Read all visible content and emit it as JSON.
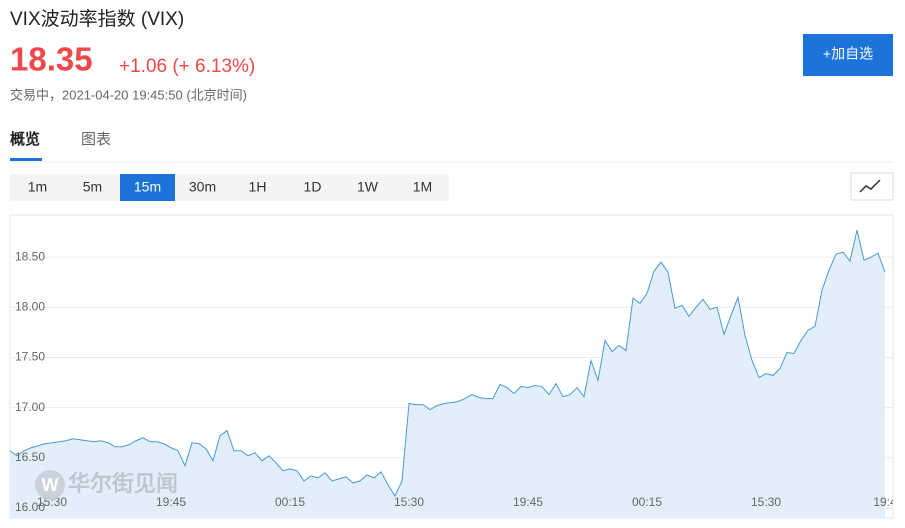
{
  "header": {
    "title": "VIX波动率指数 (VIX)",
    "price": "18.35",
    "change": "+1.06 (+ 6.13%)",
    "status": "交易中，2021-04-20 19:45:50 (北京时间)",
    "button": "+加自选"
  },
  "tabs": [
    "概览",
    "图表"
  ],
  "active_tab": "概览",
  "intervals": [
    "1m",
    "5m",
    "15m",
    "30m",
    "1H",
    "1D",
    "1W",
    "1M"
  ],
  "active_interval": "15m",
  "watermark": "华尔街见闻",
  "chart_data": {
    "type": "area",
    "color": "#4a9ad8",
    "fill": "#e2effb",
    "grid": true,
    "ylim": [
      15.9,
      18.92
    ],
    "yticks": [
      {
        "value": 16,
        "label": "16.00"
      },
      {
        "value": 16.5,
        "label": "16.50"
      },
      {
        "value": 17,
        "label": "17.00"
      },
      {
        "value": 17.5,
        "label": "17.50"
      },
      {
        "value": 18,
        "label": "18.00"
      },
      {
        "value": 18.5,
        "label": "18.50"
      }
    ],
    "categories": [
      null,
      null,
      null,
      null,
      null,
      null,
      "15:30",
      null,
      null,
      null,
      null,
      null,
      null,
      null,
      null,
      null,
      null,
      null,
      null,
      null,
      null,
      null,
      null,
      "19:45",
      null,
      null,
      null,
      null,
      null,
      null,
      null,
      null,
      null,
      null,
      null,
      null,
      null,
      null,
      null,
      null,
      "00:15",
      null,
      null,
      null,
      null,
      null,
      null,
      null,
      null,
      null,
      null,
      null,
      null,
      null,
      null,
      null,
      null,
      "15:30",
      null,
      null,
      null,
      null,
      null,
      null,
      null,
      null,
      null,
      null,
      null,
      null,
      null,
      null,
      null,
      null,
      "19:45",
      null,
      null,
      null,
      null,
      null,
      null,
      null,
      null,
      null,
      null,
      null,
      null,
      null,
      null,
      null,
      null,
      "00:15",
      null,
      null,
      null,
      null,
      null,
      null,
      null,
      null,
      null,
      null,
      null,
      null,
      null,
      null,
      null,
      null,
      "15:30",
      null,
      null,
      null,
      null,
      null,
      null,
      null,
      null,
      null,
      null,
      null,
      null,
      null,
      null,
      null,
      null,
      "19:4"
    ],
    "values": [
      16.57,
      16.52,
      16.57,
      16.6,
      16.62,
      16.64,
      16.65,
      16.66,
      16.67,
      16.69,
      16.68,
      16.67,
      16.66,
      16.67,
      16.65,
      16.61,
      16.61,
      16.63,
      16.67,
      16.7,
      16.66,
      16.66,
      16.64,
      16.6,
      16.57,
      16.42,
      16.65,
      16.64,
      16.59,
      16.47,
      16.72,
      16.77,
      16.57,
      16.57,
      16.52,
      16.55,
      16.47,
      16.52,
      16.45,
      16.37,
      16.39,
      16.37,
      16.27,
      16.32,
      16.3,
      16.35,
      16.27,
      16.29,
      16.31,
      16.25,
      16.27,
      16.33,
      16.3,
      16.36,
      16.23,
      16.12,
      16.27,
      17.04,
      17.03,
      17.03,
      16.98,
      17.02,
      17.04,
      17.05,
      17.06,
      17.09,
      17.13,
      17.1,
      17.09,
      17.09,
      17.23,
      17.2,
      17.14,
      17.21,
      17.2,
      17.22,
      17.21,
      17.13,
      17.24,
      17.11,
      17.13,
      17.2,
      17.11,
      17.47,
      17.27,
      17.67,
      17.56,
      17.62,
      17.57,
      18.09,
      18.04,
      18.14,
      18.36,
      18.45,
      18.35,
      17.99,
      18.02,
      17.91,
      18.0,
      18.08,
      17.98,
      18.0,
      17.73,
      17.92,
      18.1,
      17.72,
      17.47,
      17.3,
      17.34,
      17.32,
      17.39,
      17.55,
      17.54,
      17.67,
      17.77,
      17.81,
      18.17,
      18.37,
      18.53,
      18.55,
      18.46,
      18.77,
      18.47,
      18.5,
      18.54,
      18.35
    ]
  }
}
